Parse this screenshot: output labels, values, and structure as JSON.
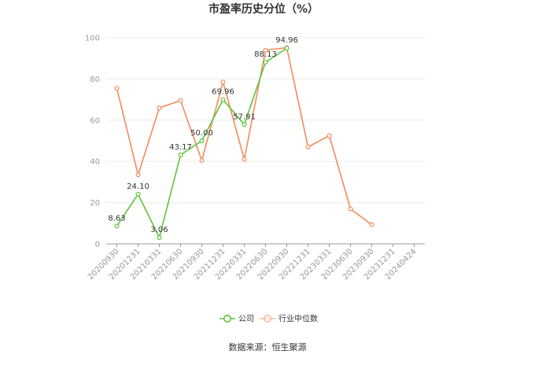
{
  "chart_data": {
    "type": "line",
    "title": "市盈率历史分位（%）",
    "categories": [
      "20200930",
      "20201231",
      "20210331",
      "20210630",
      "20210930",
      "20211231",
      "20220331",
      "20220630",
      "20220930",
      "20221231",
      "20230331",
      "20230630",
      "20230930",
      "20231231",
      "20240424"
    ],
    "ylim": [
      0,
      100
    ],
    "yticks": [
      0,
      20,
      40,
      60,
      80,
      100
    ],
    "grid": true,
    "legend": "bottom",
    "series": [
      {
        "name": "公司",
        "color": "#5cc53a",
        "values": [
          8.63,
          24.1,
          3.06,
          43.17,
          50.0,
          69.96,
          57.91,
          88.13,
          94.96,
          null,
          null,
          null,
          null,
          null,
          null
        ],
        "labels": [
          "8.63",
          "24.10",
          "3.06",
          "43.17",
          "50.00",
          "69.96",
          "57.91",
          "88.13",
          "94.96",
          "",
          "",
          "",
          "",
          "",
          ""
        ]
      },
      {
        "name": "行业中位数",
        "color": "#f5895b",
        "values": [
          75.5,
          33.5,
          66.0,
          69.5,
          40.5,
          78.5,
          41.0,
          94.0,
          95.2,
          47.0,
          52.5,
          17.0,
          9.3,
          null,
          null
        ]
      }
    ]
  },
  "source": "数据来源：恒生聚源"
}
